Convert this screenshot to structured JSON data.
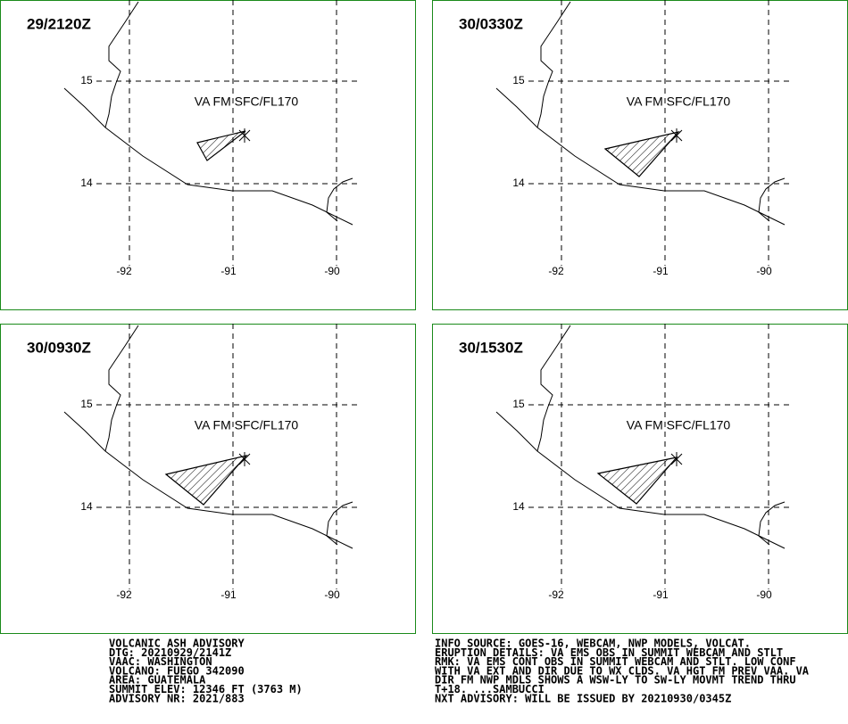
{
  "panels": [
    {
      "time": "29/2120Z",
      "layer": "VA FM SFC/FL170",
      "lat_labels": [
        "15",
        "14"
      ],
      "lon_labels": [
        "-92",
        "-91",
        "-90"
      ]
    },
    {
      "time": "30/0330Z",
      "layer": "VA FM SFC/FL170",
      "lat_labels": [
        "15",
        "14"
      ],
      "lon_labels": [
        "-92",
        "-91",
        "-90"
      ]
    },
    {
      "time": "30/0930Z",
      "layer": "VA FM SFC/FL170",
      "lat_labels": [
        "15",
        "14"
      ],
      "lon_labels": [
        "-92",
        "-91",
        "-90"
      ]
    },
    {
      "time": "30/1530Z",
      "layer": "VA FM SFC/FL170",
      "lat_labels": [
        "15",
        "14"
      ],
      "lon_labels": [
        "-92",
        "-91",
        "-90"
      ]
    }
  ],
  "advisory_left": [
    "VOLCANIC ASH ADVISORY",
    "DTG: 20210929/2141Z",
    "VAAC: WASHINGTON",
    "VOLCANO: FUEGO 342090",
    "AREA: GUATEMALA",
    "SUMMIT ELEV: 12346 FT (3763 M)",
    "ADVISORY NR: 2021/883"
  ],
  "advisory_right": [
    "INFO SOURCE: GOES-16, WEBCAM, NWP MODELS, VOLCAT.",
    "ERUPTION DETAILS: VA EMS OBS IN SUMMIT WEBCAM AND STLT",
    "RMK: VA EMS CONT OBS IN SUMMIT WEBCAM AND STLT. LOW CONF",
    "WITH VA EXT AND DIR DUE TO WX CLDS. VA HGT FM PREV VAA. VA",
    "DIR FM NWP MDLS SHOWS A WSW-LY TO SW-LY MOVMT TREND THRU",
    "T+18. ...SAMBUCCI",
    "NXT ADVISORY: WILL BE ISSUED BY 20210930/0345Z"
  ]
}
